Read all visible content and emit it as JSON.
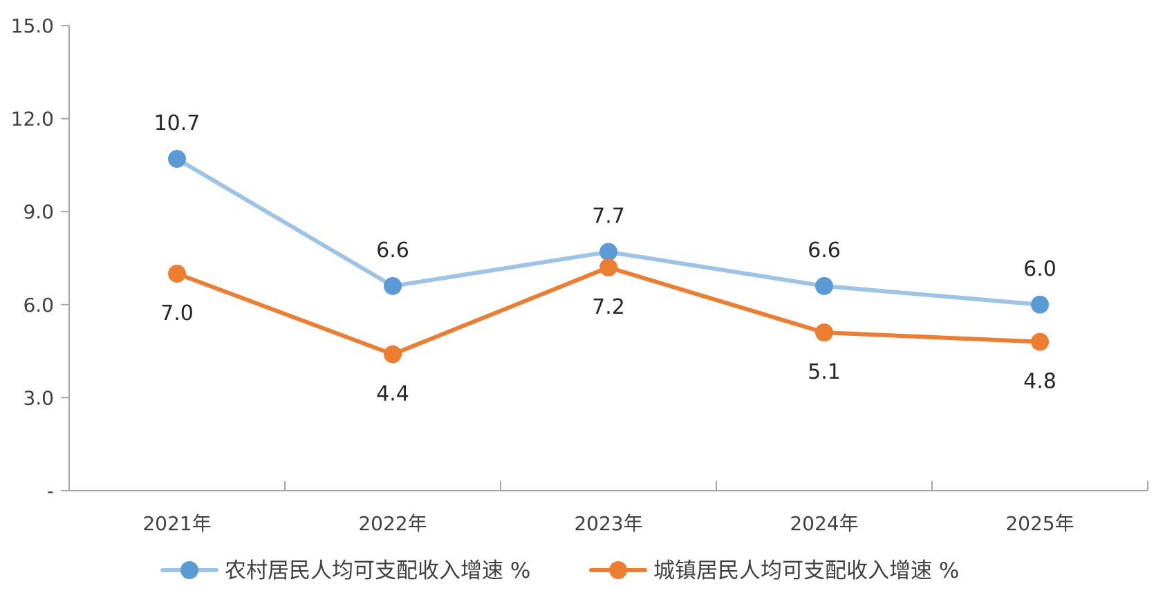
{
  "chart_data": {
    "type": "line",
    "categories": [
      "2021年",
      "2022年",
      "2023年",
      "2024年",
      "2025年"
    ],
    "ylim": [
      0,
      15
    ],
    "yticks": [
      "-",
      "3.0",
      "6.0",
      "9.0",
      "12.0",
      "15.0"
    ],
    "yticks_values": [
      0,
      3,
      6,
      9,
      12,
      15
    ],
    "grid": false,
    "legend_position": "bottom",
    "series": [
      {
        "name": "农村居民人均可支配收入增速 %",
        "values": [
          10.7,
          6.6,
          7.7,
          6.6,
          6.0
        ],
        "labels": [
          "10.7",
          "6.6",
          "7.7",
          "6.6",
          "6.0"
        ],
        "label_position": "above",
        "line_color": "#9dc3e6",
        "marker_color": "#5b9bd5"
      },
      {
        "name": "城镇居民人均可支配收入增速 %",
        "values": [
          7.0,
          4.4,
          7.2,
          5.1,
          4.8
        ],
        "labels": [
          "7.0",
          "4.4",
          "7.2",
          "5.1",
          "4.8"
        ],
        "label_position": "below",
        "line_color": "#ed7d31",
        "marker_color": "#ed7d31"
      }
    ],
    "axis_color": "#a6a6a6"
  }
}
